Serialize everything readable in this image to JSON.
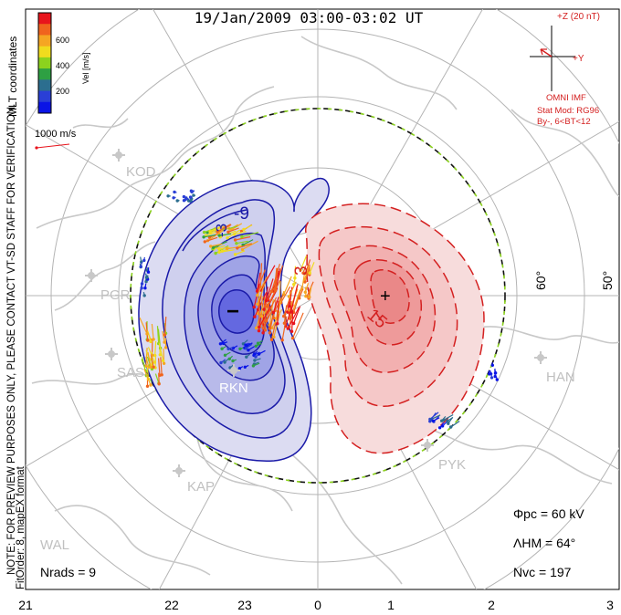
{
  "title": "19/Jan/2009 03:00-03:02 UT",
  "colorbar": {
    "label": "Vel [m/s]",
    "ticks": [
      "600",
      "400",
      "200"
    ],
    "colors": [
      "#e8141c",
      "#f0641e",
      "#f5a623",
      "#f0dc1e",
      "#8cd21e",
      "#2ea043",
      "#2c6e8f",
      "#2a3fd6",
      "#0a14e6"
    ]
  },
  "left_texts": {
    "mlt": "MLT coordinates",
    "note": "NOTE: FOR PREVIEW PURPOSES ONLY, PLEASE CONTACT VT-SD STAFF FOR VERIFICATION.",
    "fit": "FitOrder: 8, mapEX format"
  },
  "velocity_scale": "1000 m/s",
  "imf": {
    "z_label": "+Z (20 nT)",
    "y_label": "+Y",
    "source": "OMNI IMF",
    "model": "Stat Mod: RG96",
    "condition": "By-, 6<BT<12"
  },
  "stations": [
    "KOD",
    "PGR",
    "SAS",
    "RKN",
    "KAP",
    "WAL",
    "HAN",
    "PYK"
  ],
  "latitude_labels": [
    "60°",
    "50°"
  ],
  "contour_labels": [
    "-9",
    "-3",
    "3",
    "15"
  ],
  "markers": {
    "min": "−",
    "max": "+"
  },
  "stats": {
    "phi_pc": "Φpc = 60 kV",
    "lambda_hm": "ΛHM = 64°",
    "n_vc": "Nvc = 197",
    "n_rads": "Nrads = 9"
  },
  "mlt_axis": [
    "21",
    "22",
    "23",
    "0",
    "1",
    "2",
    "3"
  ],
  "colors": {
    "neg": "#1a1aa8",
    "pos": "#d42020",
    "land": "#c8c8c8",
    "grid": "#b4b4b4"
  }
}
